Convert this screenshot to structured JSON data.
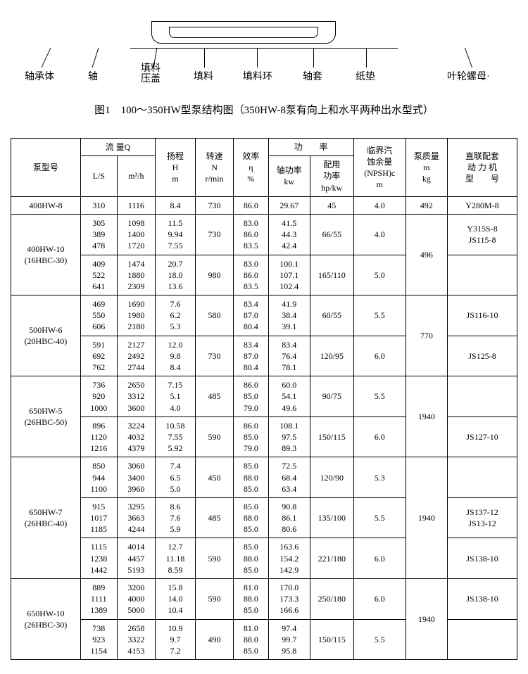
{
  "diagram": {
    "labels": [
      "轴承体",
      "轴",
      "填料压盖",
      "填料",
      "填料环",
      "轴套",
      "纸垫",
      "叶轮螺母·"
    ]
  },
  "caption": "图1　100～350HW型泵结构图（350HW-8泵有向上和水平两种出水型式）",
  "table": {
    "header": {
      "model": "泵型号",
      "flow_group": "流 量Q",
      "ls": "L/S",
      "m3h": "m³/h",
      "head": "扬程\nH\nm",
      "speed": "转速\nN\nr/min",
      "eff": "效率\nη\n%",
      "power_group": "功　　率",
      "shaft_power": "轴功率\nkw",
      "rated_power": "配用\n功率\nhp/kw",
      "npsh": "临界汽\n蚀余量\n(NPSH)c\nm",
      "mass": "泵质量\nm\nkg",
      "motor": "直联配套\n动 力 机\n型　　号"
    },
    "rows": [
      {
        "model": "400HW-8",
        "variants": [
          {
            "ls": "310",
            "m3h": "1116",
            "head": "8.4",
            "speed": "730",
            "eff": "86.0",
            "shaft": "29.67",
            "rated": "45",
            "npsh": "4.0",
            "motor": "Y280M-8"
          }
        ],
        "mass": "492"
      },
      {
        "model": "400HW-10\n(16HBC-30)",
        "variants": [
          {
            "ls": "305\n389\n478",
            "m3h": "1098\n1400\n1720",
            "head": "11.5\n9.94\n7.55",
            "speed": "730",
            "eff": "83.0\n86.0\n83.5",
            "shaft": "41.5\n44.3\n42.4",
            "rated": "66/55",
            "npsh": "4.0",
            "motor": "Y315S-8\nJS115-8"
          },
          {
            "ls": "409\n522\n641",
            "m3h": "1474\n1880\n2309",
            "head": "20.7\n18.0\n13.6",
            "speed": "980",
            "eff": "83.0\n86.0\n83.5",
            "shaft": "100.1\n107.1\n102.4",
            "rated": "165/110",
            "npsh": "5.0",
            "motor": ""
          }
        ],
        "mass": "496"
      },
      {
        "model": "500HW-6\n(20HBC-40)",
        "variants": [
          {
            "ls": "469\n550\n606",
            "m3h": "1690\n1980\n2180",
            "head": "7.6\n6.2\n5.3",
            "speed": "580",
            "eff": "83.4\n87.0\n80.4",
            "shaft": "41.9\n38.4\n39.1",
            "rated": "60/55",
            "npsh": "5.5",
            "motor": "JS116-10"
          },
          {
            "ls": "591\n692\n762",
            "m3h": "2127\n2492\n2744",
            "head": "12.0\n9.8\n8.4",
            "speed": "730",
            "eff": "83.4\n87.0\n80.4",
            "shaft": "83.4\n76.4\n78.1",
            "rated": "120/95",
            "npsh": "6.0",
            "motor": "JS125-8"
          }
        ],
        "mass": "770"
      },
      {
        "model": "650HW-5\n(26HBC-50)",
        "variants": [
          {
            "ls": "736\n920\n1000",
            "m3h": "2650\n3312\n3600",
            "head": "7.15\n5.1\n4.0",
            "speed": "485",
            "eff": "86.0\n85.0\n79.0",
            "shaft": "60.0\n54.1\n49.6",
            "rated": "90/75",
            "npsh": "5.5",
            "motor": ""
          },
          {
            "ls": "896\n1120\n1216",
            "m3h": "3224\n4032\n4379",
            "head": "10.58\n7.55\n5.92",
            "speed": "590",
            "eff": "86.0\n85.0\n79.0",
            "shaft": "108.1\n97.5\n89.3",
            "rated": "150/115",
            "npsh": "6.0",
            "motor": "JS127-10"
          }
        ],
        "mass": "1940"
      },
      {
        "model": "650HW-7\n(26HBC-40)",
        "variants": [
          {
            "ls": "850\n944\n1100",
            "m3h": "3060\n3400\n3960",
            "head": "7.4\n6.5\n5.0",
            "speed": "450",
            "eff": "85.0\n88.0\n85.0",
            "shaft": "72.5\n68.4\n63.4",
            "rated": "120/90",
            "npsh": "5.3",
            "motor": ""
          },
          {
            "ls": "915\n1017\n1185",
            "m3h": "3295\n3663\n4244",
            "head": "8.6\n7.6\n5.9",
            "speed": "485",
            "eff": "85.0\n88.0\n85.0",
            "shaft": "90.8\n86.1\n80.6",
            "rated": "135/100",
            "npsh": "5.5",
            "motor": "JS137-12\nJS13-12"
          },
          {
            "ls": "1115\n1238\n1442",
            "m3h": "4014\n4457\n5193",
            "head": "12.7\n11.18\n8.59",
            "speed": "590",
            "eff": "85.0\n88.0\n85.0",
            "shaft": "163.6\n154.2\n142.9",
            "rated": "221/180",
            "npsh": "6.0",
            "motor": "JS138-10"
          }
        ],
        "mass": "1940"
      },
      {
        "model": "650HW-10\n(26HBC-30)",
        "variants": [
          {
            "ls": "889\n1111\n1389",
            "m3h": "3200\n4000\n5000",
            "head": "15.8\n14.0\n10.4",
            "speed": "590",
            "eff": "81.0\n88.0\n85.0",
            "shaft": "170.0\n173.3\n166.6",
            "rated": "250/180",
            "npsh": "6.0",
            "motor": "JS138-10"
          },
          {
            "ls": "738\n923\n1154",
            "m3h": "2658\n3322\n4153",
            "head": "10.9\n9.7\n7.2",
            "speed": "490",
            "eff": "81.0\n88.0\n85.0",
            "shaft": "97.4\n99.7\n95.8",
            "rated": "150/115",
            "npsh": "5.5",
            "motor": ""
          }
        ],
        "mass": "1940"
      }
    ]
  }
}
